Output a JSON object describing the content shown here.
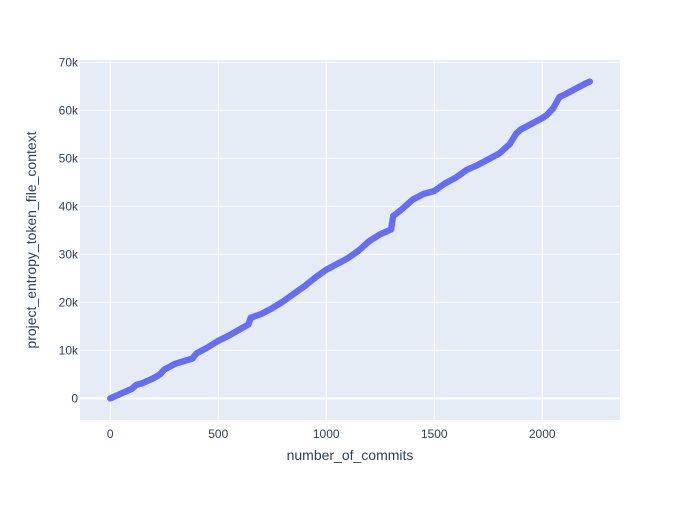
{
  "chart_data": {
    "type": "scatter",
    "title": "",
    "xlabel": "number_of_commits",
    "ylabel": "project_entropy_token_file_context",
    "xlim": [
      -140,
      2360
    ],
    "ylim": [
      -4500,
      70500
    ],
    "x_ticks": [
      0,
      500,
      1000,
      1500,
      2000
    ],
    "x_tick_labels": [
      "0",
      "500",
      "1000",
      "1500",
      "2000"
    ],
    "y_ticks": [
      0,
      10000,
      20000,
      30000,
      40000,
      50000,
      60000,
      70000
    ],
    "y_tick_labels": [
      "0",
      "10k",
      "20k",
      "30k",
      "40k",
      "50k",
      "60k",
      "70k"
    ],
    "grid": true,
    "legend": "none",
    "colors": {
      "marker": "#636efa",
      "plot_background": "#e5ecf6",
      "grid": "#ffffff",
      "text": "#2a3f5f"
    },
    "series": [
      {
        "x": [
          0,
          50,
          100,
          120,
          150,
          200,
          230,
          250,
          300,
          350,
          380,
          400,
          450,
          500,
          550,
          600,
          640,
          650,
          700,
          750,
          800,
          850,
          900,
          950,
          1000,
          1050,
          1100,
          1150,
          1200,
          1250,
          1300,
          1310,
          1350,
          1400,
          1450,
          1500,
          1550,
          1600,
          1650,
          1700,
          1750,
          1800,
          1850,
          1880,
          1900,
          1950,
          2000,
          2020,
          2050,
          2080,
          2100,
          2150,
          2200,
          2220
        ],
        "y": [
          0,
          1000,
          2000,
          2800,
          3200,
          4200,
          5000,
          6000,
          7200,
          7900,
          8300,
          9400,
          10600,
          12000,
          13100,
          14400,
          15400,
          16800,
          17600,
          18800,
          20200,
          21800,
          23400,
          25200,
          26800,
          28000,
          29200,
          30800,
          32800,
          34200,
          35200,
          38000,
          39400,
          41400,
          42600,
          43200,
          44800,
          46000,
          47600,
          48600,
          49800,
          51000,
          53000,
          55200,
          56000,
          57200,
          58400,
          59000,
          60400,
          62800,
          63200,
          64400,
          65600,
          66000
        ]
      }
    ]
  }
}
